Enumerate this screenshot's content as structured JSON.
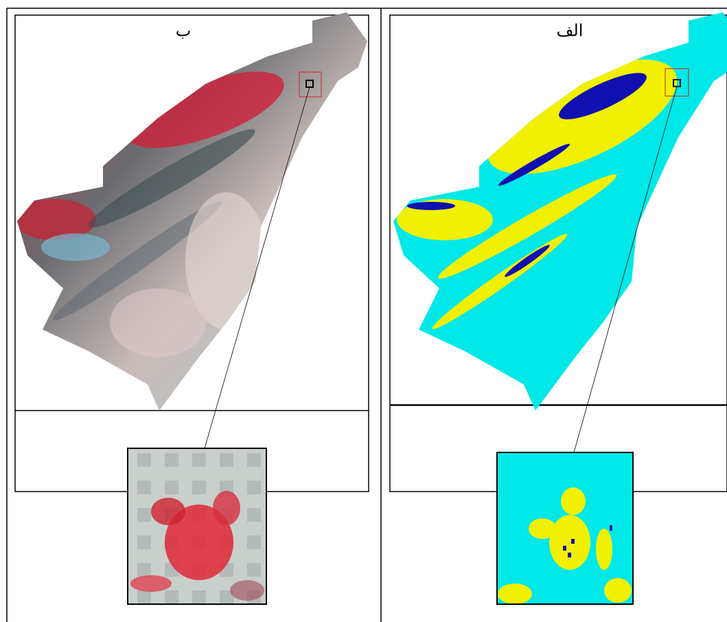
{
  "panels": [
    {
      "label": "ب"
    },
    {
      "label": "الف"
    }
  ]
}
